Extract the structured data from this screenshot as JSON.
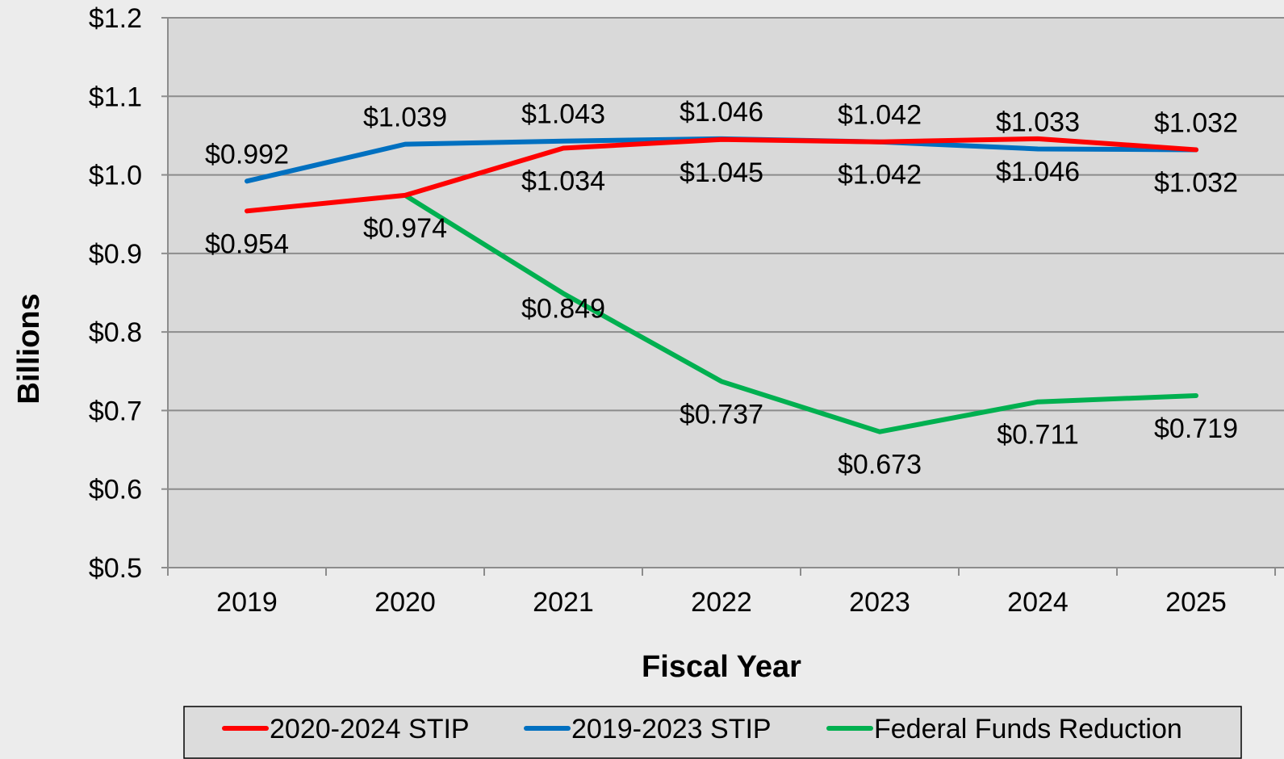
{
  "chart_data": {
    "type": "line",
    "title": "",
    "xlabel": "Fiscal Year",
    "ylabel": "Billions",
    "categories": [
      "2019",
      "2020",
      "2021",
      "2022",
      "2023",
      "2024",
      "2025"
    ],
    "ylim": [
      0.5,
      1.2
    ],
    "yticks": [
      "$0.5",
      "$0.6",
      "$0.7",
      "$0.8",
      "$0.9",
      "$1.0",
      "$1.1",
      "$1.2"
    ],
    "grid": "horizontal",
    "legend_position": "bottom",
    "series": [
      {
        "name": "2020-2024 STIP",
        "color": "#ff0000",
        "x": [
          "2019",
          "2020",
          "2021",
          "2022",
          "2023",
          "2024",
          "2025"
        ],
        "values": [
          0.954,
          0.974,
          1.034,
          1.045,
          1.042,
          1.046,
          1.032
        ],
        "labels": [
          "$0.954",
          "$0.974",
          "$1.034",
          "$1.045",
          "$1.042",
          "$1.046",
          "$1.032"
        ]
      },
      {
        "name": "2019-2023 STIP",
        "color": "#0070c0",
        "x": [
          "2019",
          "2020",
          "2021",
          "2022",
          "2023",
          "2024",
          "2025"
        ],
        "values": [
          0.992,
          1.039,
          1.043,
          1.046,
          1.042,
          1.033,
          1.032
        ],
        "labels": [
          "$0.992",
          "$1.039",
          "$1.043",
          "$1.046",
          "$1.042",
          "$1.033",
          "$1.032"
        ]
      },
      {
        "name": "Federal Funds Reduction",
        "color": "#00b050",
        "x": [
          "2020",
          "2021",
          "2022",
          "2023",
          "2024",
          "2025"
        ],
        "values": [
          0.974,
          0.849,
          0.737,
          0.673,
          0.711,
          0.719
        ],
        "labels": [
          "",
          "$0.849",
          "$0.737",
          "$0.673",
          "$0.711",
          "$0.719"
        ]
      }
    ]
  }
}
